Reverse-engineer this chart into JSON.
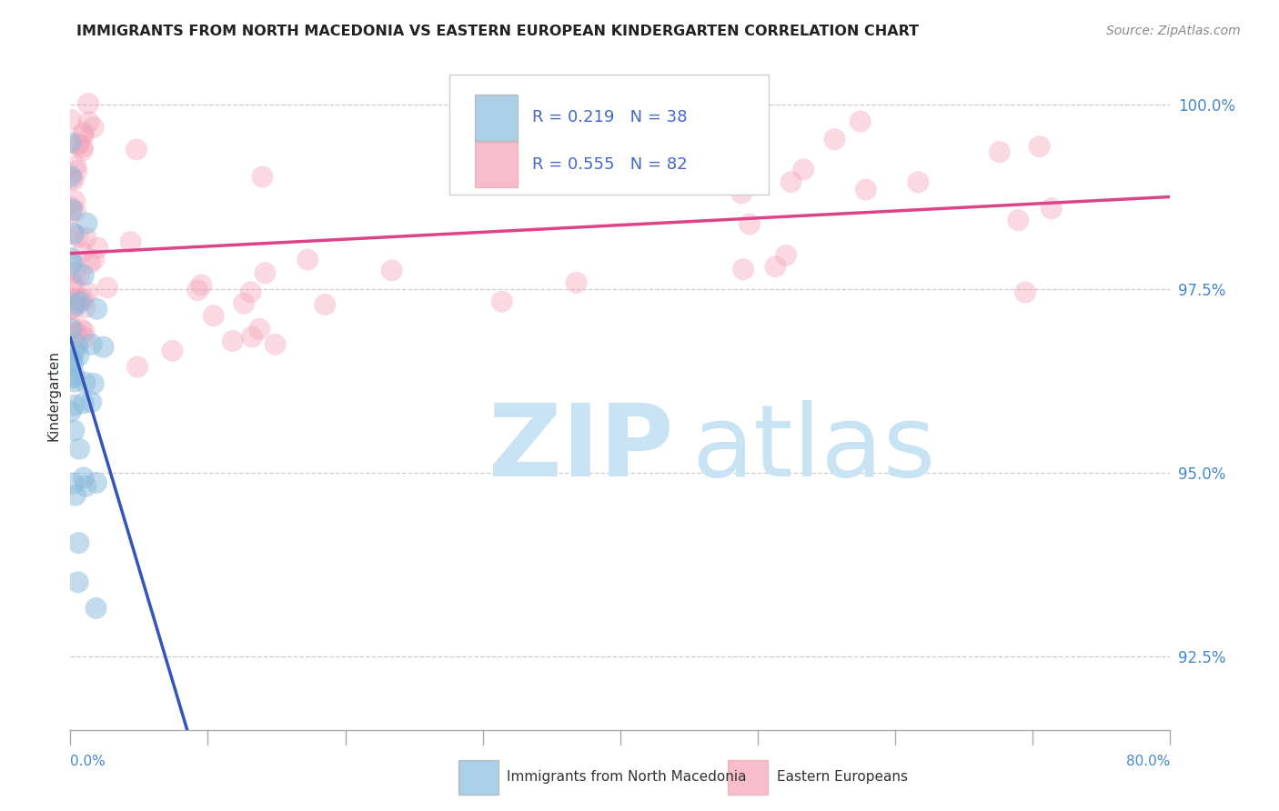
{
  "title": "IMMIGRANTS FROM NORTH MACEDONIA VS EASTERN EUROPEAN KINDERGARTEN CORRELATION CHART",
  "source": "Source: ZipAtlas.com",
  "blue_label": "Immigrants from North Macedonia",
  "pink_label": "Eastern Europeans",
  "blue_R": 0.219,
  "blue_N": 38,
  "pink_R": 0.555,
  "pink_N": 82,
  "blue_color": "#88bbdd",
  "pink_color": "#f4a0b8",
  "blue_line_color": "#3355bb",
  "pink_line_color": "#dd4488",
  "legend_text_color": "#4466cc",
  "right_tick_color": "#4488cc",
  "xmin": 0.0,
  "xmax": 0.8,
  "ymin": 0.915,
  "ymax": 1.006,
  "yticks": [
    0.925,
    0.95,
    0.975,
    1.0
  ],
  "ylabel": "Kindergarten",
  "gridline_color": "#cccccc",
  "watermark_color": "#c8e4f4"
}
